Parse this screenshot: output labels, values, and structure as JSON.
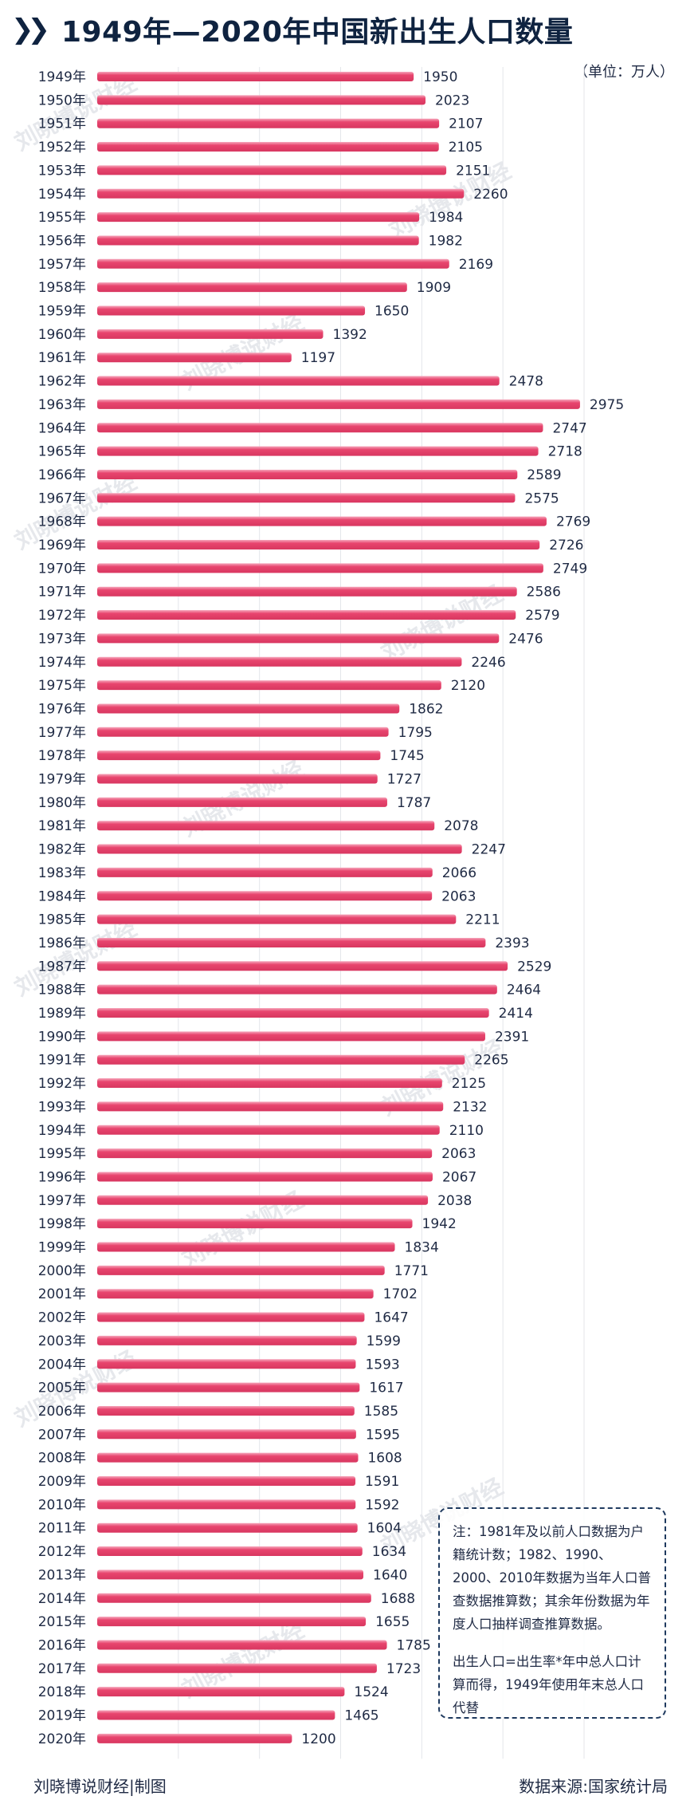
{
  "header": {
    "title": "1949年—2020年中国新出生人口数量",
    "unit": "（单位：万人）"
  },
  "chart_data": {
    "type": "bar",
    "orientation": "horizontal",
    "title": "1949年—2020年中国新出生人口数量",
    "unit": "万人",
    "bar_color": "#e8456e",
    "categories": [
      "1949年",
      "1950年",
      "1951年",
      "1952年",
      "1953年",
      "1954年",
      "1955年",
      "1956年",
      "1957年",
      "1958年",
      "1959年",
      "1960年",
      "1961年",
      "1962年",
      "1963年",
      "1964年",
      "1965年",
      "1966年",
      "1967年",
      "1968年",
      "1969年",
      "1970年",
      "1971年",
      "1972年",
      "1973年",
      "1974年",
      "1975年",
      "1976年",
      "1977年",
      "1978年",
      "1979年",
      "1980年",
      "1981年",
      "1982年",
      "1983年",
      "1984年",
      "1985年",
      "1986年",
      "1987年",
      "1988年",
      "1989年",
      "1990年",
      "1991年",
      "1992年",
      "1993年",
      "1994年",
      "1995年",
      "1996年",
      "1997年",
      "1998年",
      "1999年",
      "2000年",
      "2001年",
      "2002年",
      "2003年",
      "2004年",
      "2005年",
      "2006年",
      "2007年",
      "2008年",
      "2009年",
      "2010年",
      "2011年",
      "2012年",
      "2013年",
      "2014年",
      "2015年",
      "2016年",
      "2017年",
      "2018年",
      "2019年",
      "2020年"
    ],
    "values": [
      1950,
      2023,
      2107,
      2105,
      2151,
      2260,
      1984,
      1982,
      2169,
      1909,
      1650,
      1392,
      1197,
      2478,
      2975,
      2747,
      2718,
      2589,
      2575,
      2769,
      2726,
      2749,
      2586,
      2579,
      2476,
      2246,
      2120,
      1862,
      1795,
      1745,
      1727,
      1787,
      2078,
      2247,
      2066,
      2063,
      2211,
      2393,
      2529,
      2464,
      2414,
      2391,
      2265,
      2125,
      2132,
      2110,
      2063,
      2067,
      2038,
      1942,
      1834,
      1771,
      1702,
      1647,
      1599,
      1593,
      1617,
      1585,
      1595,
      1608,
      1591,
      1592,
      1604,
      1634,
      1640,
      1688,
      1655,
      1785,
      1723,
      1524,
      1465,
      1200
    ],
    "xlim": [
      0,
      3000
    ],
    "grid": true
  },
  "note": {
    "paragraph1": "注：1981年及以前人口数据为户籍统计数；1982、1990、2000、2010年数据为当年人口普查数据推算数；其余年份数据为年度人口抽样调查推算数据。",
    "paragraph2": "出生人口=出生率*年中总人口计算而得，1949年使用年末总人口代替"
  },
  "footer": {
    "credit": "刘晓博说财经|制图",
    "source": "数据来源:国家统计局"
  },
  "watermark": "刘晓博说财经"
}
